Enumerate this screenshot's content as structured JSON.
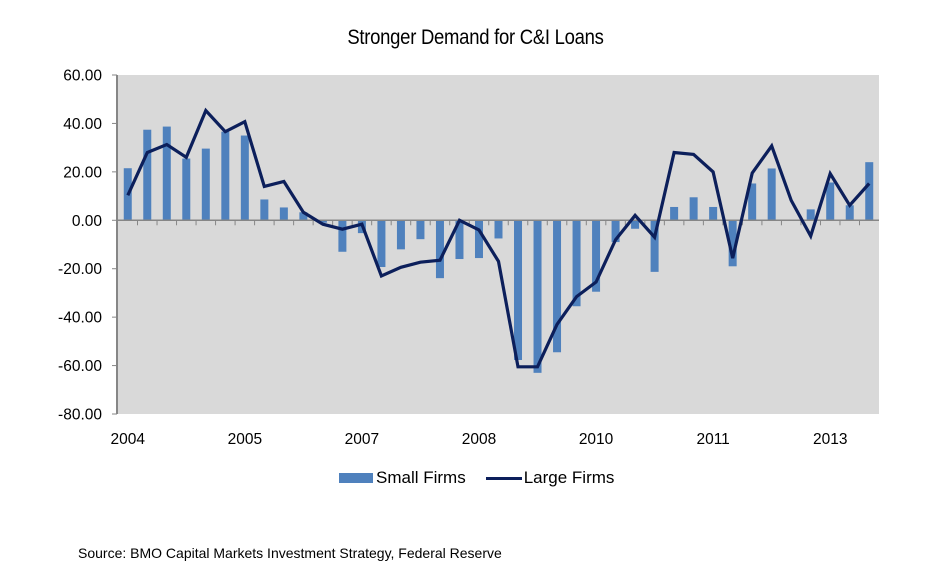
{
  "chart_data": {
    "type": "bar+line",
    "title": "Stronger Demand for C&I Loans",
    "xlabel": "",
    "ylabel": "",
    "ylim": [
      -80,
      60
    ],
    "yticks": [
      60,
      40,
      20,
      0,
      -20,
      -40,
      -60,
      -80
    ],
    "ytick_labels": [
      "60.00",
      "40.00",
      "20.00",
      "0.00",
      "-20.00",
      "-40.00",
      "-60.00",
      "-80.00"
    ],
    "grid": false,
    "legend_position": "bottom",
    "n_periods": 39,
    "x_tick_labels": [
      {
        "index": 0,
        "label": "2004"
      },
      {
        "index": 6,
        "label": "2005"
      },
      {
        "index": 12,
        "label": "2007"
      },
      {
        "index": 18,
        "label": "2008"
      },
      {
        "index": 24,
        "label": "2010"
      },
      {
        "index": 30,
        "label": "2011"
      },
      {
        "index": 36,
        "label": "2013"
      }
    ],
    "series": [
      {
        "name": "Small Firms",
        "kind": "bar",
        "color": "#4f81bd",
        "values": [
          21.5,
          37.4,
          38.7,
          25.5,
          29.6,
          36.6,
          35.0,
          8.6,
          5.3,
          3.3,
          -1.0,
          -13.0,
          -5.3,
          -19.3,
          -12.0,
          -7.8,
          -23.9,
          -16.0,
          -15.6,
          -7.5,
          -57.7,
          -63.0,
          -54.5,
          -35.5,
          -29.5,
          -9.0,
          -3.5,
          -21.3,
          5.5,
          9.5,
          5.5,
          -19.0,
          15.2,
          21.4,
          0.0,
          4.5,
          15.6,
          6.2,
          24.0
        ]
      },
      {
        "name": "Large Firms",
        "kind": "line",
        "color": "#0c1f5b",
        "values": [
          10.3,
          28.0,
          31.3,
          26.0,
          45.3,
          36.6,
          40.7,
          14.0,
          16.0,
          3.3,
          -1.6,
          -3.7,
          -1.6,
          -23.0,
          -19.4,
          -17.3,
          -16.5,
          0.0,
          -4.0,
          -17.0,
          -60.5,
          -60.5,
          -43.0,
          -31.5,
          -25.5,
          -8.0,
          2.0,
          -7.0,
          28.0,
          27.2,
          20.0,
          -15.6,
          19.5,
          30.7,
          8.2,
          -6.5,
          19.3,
          6.2,
          15.2
        ]
      }
    ]
  },
  "source": "Source:  BMO Capital Markets Investment Strategy, Federal Reserve",
  "colors": {
    "plot_bg": "#d9d9d9",
    "axis": "#868686"
  }
}
